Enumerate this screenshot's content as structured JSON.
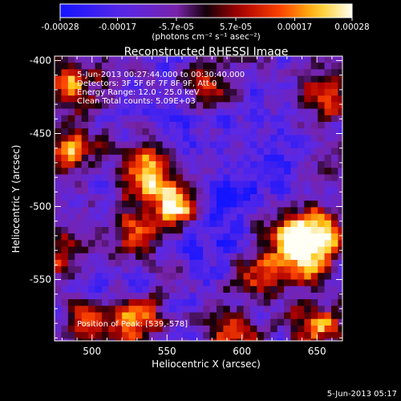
{
  "chart_data": {
    "type": "heatmap",
    "title": "Reconstructed RHESSI Image",
    "xlabel": "Heliocentric X (arcsec)",
    "ylabel": "Heliocentric Y (arcsec)",
    "xlim": [
      475,
      667
    ],
    "ylim": [
      -592,
      -397
    ],
    "xticks": [
      500,
      550,
      600,
      650
    ],
    "yticks": [
      -400,
      -450,
      -500,
      -550
    ],
    "colorbar": {
      "colormap": "RHESSI blue-to-white",
      "range": [
        -0.00028,
        0.00028
      ],
      "ticks": [
        -0.00028,
        -0.00017,
        -5.7e-05,
        5.7e-05,
        0.00017,
        0.00028
      ],
      "tick_labels": [
        "-0.00028",
        "-0.00017",
        "-5.7e-05",
        "5.7e-05",
        "0.00017",
        "0.00028"
      ],
      "unit_label": "(photons cm⁻² s⁻¹ asec⁻²)"
    },
    "annotations": [
      "5-Jun-2013 00:27:44.000 to 00:30:40.000",
      "Detectors: 3F 5F 6F 7F 8F 9F, Att 0",
      "Energy Range: 12.0 - 25.0 keV",
      "Clean     Total counts: 5.09E+03",
      "Position of Peak: [539,-578]"
    ],
    "peak_position": [
      539,
      -578
    ],
    "bright_regions": [
      {
        "x": 487,
        "y": -418,
        "level": 0.75
      },
      {
        "x": 535,
        "y": -478,
        "level": 0.95
      },
      {
        "x": 556,
        "y": -500,
        "level": 0.98
      },
      {
        "x": 528,
        "y": -516,
        "level": 0.55
      },
      {
        "x": 654,
        "y": -518,
        "level": 0.92
      },
      {
        "x": 632,
        "y": -520,
        "level": 0.8
      },
      {
        "x": 642,
        "y": -538,
        "level": 0.7
      },
      {
        "x": 612,
        "y": -548,
        "level": 0.6
      },
      {
        "x": 487,
        "y": -462,
        "level": 0.55
      },
      {
        "x": 530,
        "y": -578,
        "level": 0.8
      },
      {
        "x": 500,
        "y": -580,
        "level": 0.5
      },
      {
        "x": 590,
        "y": -585,
        "level": 0.6
      },
      {
        "x": 650,
        "y": -582,
        "level": 0.7
      },
      {
        "x": 575,
        "y": -420,
        "level": 0.5
      },
      {
        "x": 655,
        "y": -425,
        "level": 0.55
      },
      {
        "x": 480,
        "y": -530,
        "level": 0.55
      }
    ],
    "dark_regions": [
      {
        "x": 592,
        "y": -495,
        "level": 0.95
      },
      {
        "x": 580,
        "y": -520,
        "level": 0.7
      },
      {
        "x": 620,
        "y": -470,
        "level": 0.6
      },
      {
        "x": 560,
        "y": -445,
        "level": 0.55
      },
      {
        "x": 510,
        "y": -555,
        "level": 0.5
      }
    ]
  },
  "footer": {
    "date": "5-Jun-2013 05:17"
  }
}
